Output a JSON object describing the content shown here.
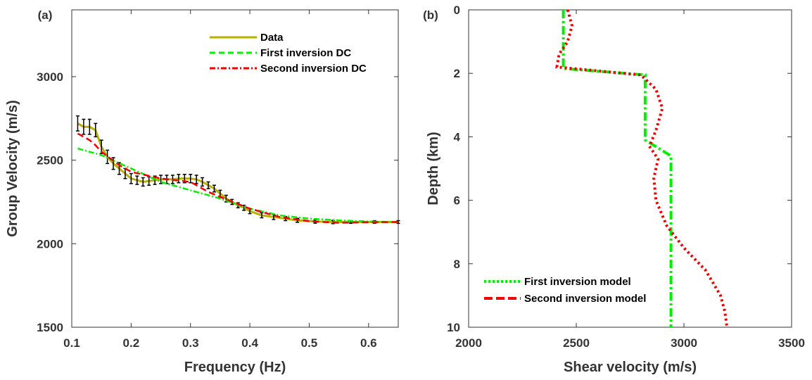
{
  "chart_data": [
    {
      "type": "line",
      "panel_label": "(a)",
      "x_label": "Frequency (Hz)",
      "y_label": "Group  Velocity (m/s)",
      "xlim": [
        0.1,
        0.65
      ],
      "xticks": [
        0.1,
        0.2,
        0.3,
        0.4,
        0.5,
        0.6
      ],
      "ylim": [
        1500,
        3400
      ],
      "yticks": [
        1500,
        2000,
        2500,
        3000
      ],
      "series": [
        {
          "name": "Data",
          "color": "#b8b000",
          "x": [
            0.11,
            0.12,
            0.13,
            0.14,
            0.15,
            0.16,
            0.17,
            0.18,
            0.19,
            0.2,
            0.21,
            0.22,
            0.23,
            0.24,
            0.25,
            0.26,
            0.27,
            0.28,
            0.29,
            0.3,
            0.31,
            0.32,
            0.33,
            0.34,
            0.35,
            0.36,
            0.37,
            0.38,
            0.39,
            0.4,
            0.42,
            0.44,
            0.46,
            0.48,
            0.51,
            0.54,
            0.57,
            0.61,
            0.65
          ],
          "values": [
            2720,
            2700,
            2700,
            2680,
            2580,
            2520,
            2480,
            2450,
            2420,
            2390,
            2380,
            2370,
            2375,
            2380,
            2385,
            2385,
            2385,
            2390,
            2390,
            2390,
            2385,
            2370,
            2350,
            2330,
            2300,
            2270,
            2250,
            2230,
            2215,
            2195,
            2170,
            2160,
            2150,
            2140,
            2133,
            2130,
            2130,
            2130,
            2130
          ],
          "errors": [
            45,
            45,
            45,
            40,
            40,
            40,
            35,
            35,
            30,
            30,
            25,
            25,
            25,
            25,
            25,
            25,
            25,
            25,
            25,
            25,
            25,
            25,
            20,
            20,
            20,
            20,
            15,
            15,
            15,
            15,
            15,
            15,
            12,
            12,
            10,
            10,
            8,
            8,
            8
          ]
        },
        {
          "name": "First inversion DC",
          "color": "#00ee00",
          "x": [
            0.11,
            0.15,
            0.2,
            0.25,
            0.3,
            0.35,
            0.4,
            0.45,
            0.5,
            0.55,
            0.6,
            0.65
          ],
          "values": [
            2570,
            2530,
            2450,
            2370,
            2320,
            2270,
            2210,
            2170,
            2150,
            2140,
            2133,
            2130
          ]
        },
        {
          "name": "Second inversion DC",
          "color": "#ee0000",
          "x": [
            0.11,
            0.13,
            0.14,
            0.15,
            0.18,
            0.2,
            0.25,
            0.3,
            0.33,
            0.35,
            0.4,
            0.45,
            0.5,
            0.55,
            0.6,
            0.65
          ],
          "values": [
            2660,
            2620,
            2590,
            2550,
            2470,
            2430,
            2390,
            2370,
            2310,
            2280,
            2210,
            2160,
            2135,
            2125,
            2128,
            2130
          ]
        }
      ]
    },
    {
      "type": "profile",
      "panel_label": "(b)",
      "x_label": "Shear velocity (m/s)",
      "y_label": "Depth (km)",
      "xlim": [
        2000,
        3500
      ],
      "xticks": [
        2000,
        2500,
        3000,
        3500
      ],
      "ylim": [
        0,
        10
      ],
      "yticks": [
        0,
        2,
        4,
        6,
        8,
        10
      ],
      "y_inverted": true,
      "series": [
        {
          "name": "First inversion model",
          "color": "#00ee00",
          "x": [
            2440,
            2440,
            2820,
            2820,
            2940,
            2940
          ],
          "y": [
            0,
            1.85,
            2.05,
            4.1,
            4.6,
            10
          ]
        },
        {
          "name": "Second inversion model",
          "color": "#ee0000",
          "x": [
            2460,
            2480,
            2460,
            2420,
            2410,
            2800,
            2870,
            2900,
            2870,
            2840,
            2880,
            2860,
            2870,
            2920,
            3000,
            3100,
            3170,
            3190,
            3200
          ],
          "y": [
            0,
            0.5,
            1,
            1.4,
            1.8,
            2.05,
            2.5,
            3.1,
            3.8,
            4.3,
            4.7,
            5.3,
            6,
            6.8,
            7.5,
            8.2,
            9,
            9.5,
            10
          ]
        }
      ]
    }
  ]
}
